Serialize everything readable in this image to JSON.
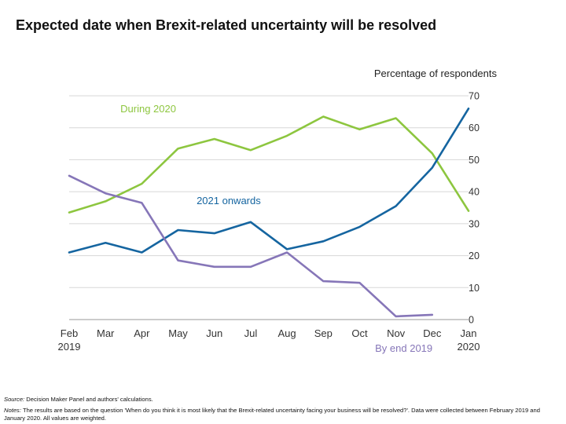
{
  "chart_data": {
    "type": "line",
    "title": "Expected date when Brexit-related uncertainty will be resolved",
    "unit_label": "Percentage of respondents",
    "x_ticks": [
      {
        "top": "Feb",
        "bottom": "2019"
      },
      {
        "top": "Mar",
        "bottom": ""
      },
      {
        "top": "Apr",
        "bottom": ""
      },
      {
        "top": "May",
        "bottom": ""
      },
      {
        "top": "Jun",
        "bottom": ""
      },
      {
        "top": "Jul",
        "bottom": ""
      },
      {
        "top": "Aug",
        "bottom": ""
      },
      {
        "top": "Sep",
        "bottom": ""
      },
      {
        "top": "Oct",
        "bottom": ""
      },
      {
        "top": "Nov",
        "bottom": ""
      },
      {
        "top": "Dec",
        "bottom": ""
      },
      {
        "top": "Jan",
        "bottom": "2020"
      }
    ],
    "y_ticks": [
      0,
      10,
      20,
      30,
      40,
      50,
      60,
      70
    ],
    "ylim": [
      0,
      70
    ],
    "y_axis_side": "right",
    "gridlines": true,
    "series": [
      {
        "name": "During 2020",
        "color": "#8dc63f",
        "label_anchor_index": 3,
        "values": [
          33.5,
          37,
          42.5,
          53.5,
          56.5,
          53,
          57.5,
          63.5,
          59.5,
          63,
          52,
          34
        ]
      },
      {
        "name": "2021 onwards",
        "color": "#1565a0",
        "label_anchor_index": 5,
        "values": [
          21,
          24,
          21,
          28,
          27,
          30.5,
          22,
          24.5,
          29,
          35.5,
          47.5,
          66
        ]
      },
      {
        "name": "By end 2019",
        "color": "#8676b8",
        "label_anchor_index": 9,
        "values": [
          45,
          39.5,
          36.5,
          18.5,
          16.5,
          16.5,
          21,
          12,
          11.5,
          1,
          1.5,
          null
        ]
      }
    ]
  },
  "footnotes": {
    "source_label": "Source:",
    "source_text": "Decision Maker Panel and authors' calculations.",
    "notes_label": "Notes:",
    "notes_text": "The results are based on the question 'When do you think it is most likely that the Brexit-related uncertainty facing your business will be resolved?'. Data were collected between February 2019 and January 2020. All values are weighted."
  }
}
